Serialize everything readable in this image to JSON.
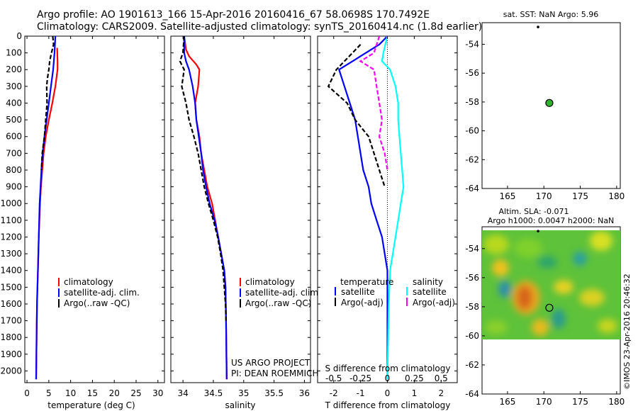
{
  "title_line1": "Argo profile: AO 1901613_166 15-Apr-2016 20160416_67 58.0698S 170.7492E",
  "title_line2": "Climatology: CARS2009. Satellite-adjusted climatology: synTS_20160414.nc (1.8d earlier)",
  "side_label": "©IMOS 23-Apr-2016 20:46:32",
  "colors": {
    "climatology": "#ff0000",
    "satellite": "#0000ff",
    "argo": "#000000",
    "cyan": "#00ffff",
    "magenta": "#ff00ff",
    "green": "#2fb32f"
  },
  "chart_data": [
    {
      "id": "temperature",
      "type": "line",
      "xlabel": "temperature (deg C)",
      "ylabel": "",
      "xlim": [
        -0.5,
        31.5
      ],
      "ylim": [
        0,
        2070
      ],
      "yinvert": true,
      "xticks": [
        0,
        5,
        10,
        15,
        20,
        25,
        30
      ],
      "yticks": [
        0,
        100,
        200,
        300,
        400,
        500,
        600,
        700,
        800,
        900,
        1000,
        1100,
        1200,
        1300,
        1400,
        1500,
        1600,
        1700,
        1800,
        1900,
        2000
      ],
      "legend": {
        "position": "lower-center",
        "entries": [
          "climatology",
          "satellite-adj. clim.",
          "Argo(..raw -QC)"
        ]
      },
      "series": [
        {
          "name": "climatology",
          "color": "red",
          "points": [
            [
              6.9,
              70
            ],
            [
              7.0,
              150
            ],
            [
              7.0,
              200
            ],
            [
              6.5,
              300
            ],
            [
              5.8,
              400
            ],
            [
              5.0,
              500
            ],
            [
              4.3,
              600
            ],
            [
              3.8,
              700
            ],
            [
              3.5,
              800
            ],
            [
              3.2,
              900
            ],
            [
              3.0,
              1000
            ],
            [
              2.7,
              1200
            ],
            [
              2.5,
              1400
            ],
            [
              2.3,
              1600
            ],
            [
              2.2,
              1800
            ],
            [
              2.1,
              2050
            ]
          ]
        },
        {
          "name": "satellite-adj. clim.",
          "color": "blue",
          "points": [
            [
              6.5,
              0
            ],
            [
              6.3,
              100
            ],
            [
              6.0,
              200
            ],
            [
              5.5,
              300
            ],
            [
              5.0,
              400
            ],
            [
              4.5,
              500
            ],
            [
              4.0,
              600
            ],
            [
              3.6,
              700
            ],
            [
              3.3,
              800
            ],
            [
              3.1,
              900
            ],
            [
              2.9,
              1000
            ],
            [
              2.7,
              1200
            ],
            [
              2.5,
              1400
            ],
            [
              2.3,
              1600
            ],
            [
              2.2,
              1800
            ],
            [
              2.1,
              2050
            ]
          ]
        },
        {
          "name": "Argo(..raw -QC)",
          "color": "black",
          "dashed": true,
          "points": [
            [
              5.9,
              0
            ],
            [
              6.1,
              50
            ],
            [
              5.6,
              100
            ],
            [
              5.2,
              150
            ],
            [
              5.0,
              200
            ],
            [
              4.7,
              250
            ],
            [
              4.5,
              300
            ],
            [
              4.6,
              400
            ],
            [
              4.3,
              500
            ],
            [
              4.0,
              600
            ],
            [
              3.5,
              700
            ],
            [
              3.3,
              800
            ]
          ]
        }
      ]
    },
    {
      "id": "salinity",
      "type": "line",
      "xlabel": "salinity",
      "ylabel": "",
      "xlim": [
        33.8,
        36.1
      ],
      "ylim": [
        0,
        2070
      ],
      "yinvert": true,
      "xticks": [
        34,
        34.5,
        35,
        35.5,
        36
      ],
      "yticks": [
        0,
        100,
        200,
        300,
        400,
        500,
        600,
        700,
        800,
        900,
        1000,
        1100,
        1200,
        1300,
        1400,
        1500,
        1600,
        1700,
        1800,
        1900,
        2000
      ],
      "legend": {
        "position": "lower-right",
        "entries": [
          "climatology",
          "satellite-adj. clim.",
          "Argo(..raw -QC)"
        ]
      },
      "annotation": [
        "US ARGO PROJECT",
        "PI: DEAN ROEMMICH"
      ],
      "series": [
        {
          "name": "climatology",
          "color": "red",
          "points": [
            [
              34.02,
              0
            ],
            [
              34.05,
              80
            ],
            [
              34.1,
              120
            ],
            [
              34.22,
              170
            ],
            [
              34.27,
              200
            ],
            [
              34.25,
              300
            ],
            [
              34.2,
              400
            ],
            [
              34.22,
              500
            ],
            [
              34.27,
              600
            ],
            [
              34.3,
              700
            ],
            [
              34.35,
              800
            ],
            [
              34.4,
              900
            ],
            [
              34.48,
              1000
            ],
            [
              34.53,
              1100
            ],
            [
              34.58,
              1200
            ],
            [
              34.63,
              1300
            ],
            [
              34.68,
              1400
            ],
            [
              34.7,
              1500
            ],
            [
              34.71,
              1700
            ],
            [
              34.72,
              2050
            ]
          ]
        },
        {
          "name": "satellite-adj. clim.",
          "color": "blue",
          "points": [
            [
              34.02,
              0
            ],
            [
              34.02,
              100
            ],
            [
              34.05,
              150
            ],
            [
              34.1,
              200
            ],
            [
              34.16,
              300
            ],
            [
              34.2,
              400
            ],
            [
              34.22,
              500
            ],
            [
              34.26,
              600
            ],
            [
              34.3,
              700
            ],
            [
              34.33,
              800
            ],
            [
              34.38,
              900
            ],
            [
              34.44,
              1000
            ],
            [
              34.52,
              1100
            ],
            [
              34.58,
              1200
            ],
            [
              34.63,
              1300
            ],
            [
              34.68,
              1400
            ],
            [
              34.7,
              1500
            ],
            [
              34.71,
              1700
            ],
            [
              34.72,
              2050
            ]
          ]
        },
        {
          "name": "Argo(..raw -QC)",
          "color": "black",
          "dashed": true,
          "points": [
            [
              34.02,
              0
            ],
            [
              34.0,
              100
            ],
            [
              33.95,
              150
            ],
            [
              34.02,
              200
            ],
            [
              33.98,
              300
            ],
            [
              34.05,
              400
            ],
            [
              34.1,
              500
            ],
            [
              34.18,
              600
            ],
            [
              34.25,
              700
            ],
            [
              34.3,
              800
            ],
            [
              34.35,
              900
            ],
            [
              34.42,
              1000
            ],
            [
              34.5,
              1100
            ],
            [
              34.57,
              1200
            ],
            [
              34.62,
              1300
            ],
            [
              34.66,
              1400
            ],
            [
              34.68,
              1500
            ],
            [
              34.7,
              1600
            ],
            [
              34.71,
              1700
            ]
          ]
        }
      ]
    },
    {
      "id": "differences",
      "type": "line",
      "xlabel": "T difference from climatology",
      "xlabel_top": "S difference from climatology",
      "ylabel": "",
      "xlim": [
        -2.6,
        2.6
      ],
      "ylim": [
        0,
        2070
      ],
      "yinvert": true,
      "xticks": [
        -2,
        -1,
        0,
        1,
        2
      ],
      "xticks_salinity": [
        "-0.5",
        "-0.25",
        "0",
        "0.25",
        "0.5"
      ],
      "yticks": [
        0,
        100,
        200,
        300,
        400,
        500,
        600,
        700,
        800,
        900,
        1000,
        1100,
        1200,
        1300,
        1400,
        1500,
        1600,
        1700,
        1800,
        1900,
        2000
      ],
      "legend": {
        "position": "lower-center",
        "groups": [
          "temperature",
          "salinity"
        ],
        "entries": [
          "satellite",
          "Argo(-adj)",
          "satellite",
          "Argo(-adj)"
        ]
      },
      "series": [
        {
          "name": "temperature satellite",
          "color": "blue",
          "points": [
            [
              0,
              0
            ],
            [
              -0.3,
              50
            ],
            [
              -0.8,
              100
            ],
            [
              -1.3,
              150
            ],
            [
              -1.8,
              200
            ],
            [
              -1.6,
              300
            ],
            [
              -1.4,
              400
            ],
            [
              -1.2,
              500
            ],
            [
              -1.1,
              600
            ],
            [
              -1.0,
              700
            ],
            [
              -0.9,
              800
            ],
            [
              -0.7,
              900
            ],
            [
              -0.6,
              1000
            ],
            [
              -0.4,
              1100
            ],
            [
              -0.2,
              1200
            ],
            [
              -0.1,
              1300
            ],
            [
              0,
              1400
            ],
            [
              0,
              2050
            ]
          ]
        },
        {
          "name": "temperature Argo(-adj)",
          "color": "black",
          "dashed": true,
          "points": [
            [
              -1.0,
              50
            ],
            [
              -1.3,
              100
            ],
            [
              -1.9,
              200
            ],
            [
              -2.2,
              300
            ],
            [
              -1.5,
              400
            ],
            [
              -1.2,
              500
            ],
            [
              -0.7,
              600
            ],
            [
              -0.5,
              700
            ],
            [
              -0.3,
              800
            ],
            [
              -0.1,
              900
            ]
          ]
        },
        {
          "name": "salinity satellite",
          "color": "cyan",
          "points": [
            [
              0,
              0
            ],
            [
              -0.15,
              100
            ],
            [
              -0.2,
              150
            ],
            [
              0.1,
              200
            ],
            [
              0.3,
              300
            ],
            [
              0.4,
              400
            ],
            [
              0.4,
              500
            ],
            [
              0.45,
              600
            ],
            [
              0.5,
              700
            ],
            [
              0.55,
              800
            ],
            [
              0.6,
              900
            ],
            [
              0.5,
              1000
            ],
            [
              0.4,
              1100
            ],
            [
              0.3,
              1200
            ],
            [
              0.2,
              1300
            ],
            [
              0.1,
              1400
            ],
            [
              0.05,
              1600
            ],
            [
              0,
              2050
            ]
          ]
        },
        {
          "name": "salinity Argo(-adj)",
          "color": "magenta",
          "dashed": true,
          "points": [
            [
              -0.3,
              0
            ],
            [
              -0.5,
              100
            ],
            [
              -1.0,
              150
            ],
            [
              -0.5,
              200
            ],
            [
              -0.4,
              300
            ],
            [
              -0.3,
              400
            ],
            [
              -0.2,
              500
            ],
            [
              -0.3,
              600
            ],
            [
              -0.1,
              700
            ],
            [
              0,
              800
            ]
          ]
        }
      ]
    },
    {
      "id": "sst-map",
      "type": "scatter",
      "title": "sat. SST: NaN Argo: 5.96",
      "xlim": [
        161.5,
        180.5
      ],
      "ylim": [
        -64,
        -52.5
      ],
      "xticks": [
        165,
        170,
        175,
        180
      ],
      "yticks": [
        -54,
        -56,
        -58,
        -60,
        -62,
        -64
      ],
      "points": [
        {
          "x": 169.2,
          "y": -52.8,
          "kind": "dot"
        },
        {
          "x": 170.75,
          "y": -58.07,
          "kind": "float"
        }
      ]
    },
    {
      "id": "sla-map",
      "type": "heatmap",
      "title": "Altim. SLA: -0.071",
      "subtitle": "Argo h1000: 0.0047 h2000: NaN",
      "xlim": [
        161.5,
        180.5
      ],
      "ylim": [
        -64,
        -52.5
      ],
      "xticks": [
        165,
        170,
        175,
        180
      ],
      "yticks": [
        -54,
        -56,
        -58,
        -60,
        -62,
        -64
      ],
      "points": [
        {
          "x": 169.2,
          "y": -52.8,
          "kind": "dot"
        },
        {
          "x": 170.75,
          "y": -58.07,
          "kind": "float"
        }
      ]
    }
  ]
}
